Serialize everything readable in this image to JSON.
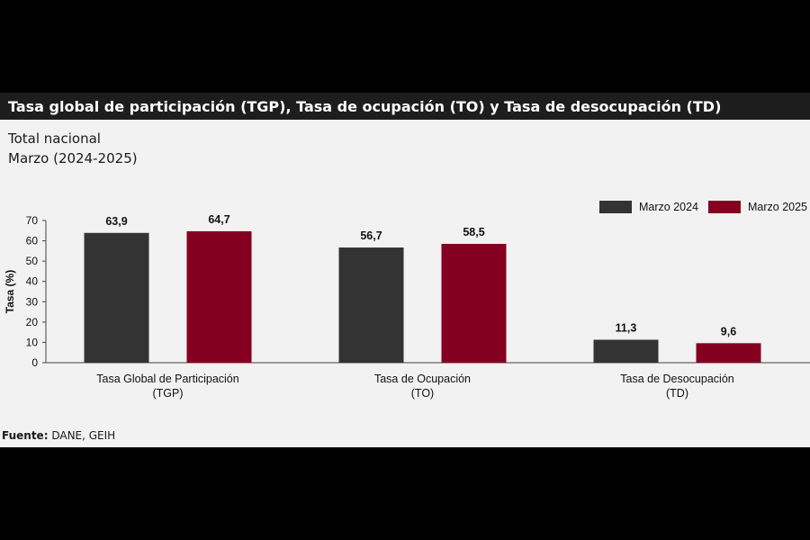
{
  "title": "Tasa global de participación (TGP), Tasa de ocupación (TO) y Tasa de desocupación (TD)",
  "subtitle_lines": [
    "Total nacional",
    "Marzo (2024-2025)"
  ],
  "source": {
    "label": "Fuente:",
    "text": "DANE, GEIH"
  },
  "colors": {
    "series_2024": "#333333",
    "series_2025": "#850020",
    "title_bg": "#1d1d1d",
    "panel_bg": "#f2f2f2"
  },
  "chart_data": {
    "type": "bar",
    "categories": [
      [
        "Tasa Global de Participación",
        "(TGP)"
      ],
      [
        "Tasa de Ocupación",
        "(TO)"
      ],
      [
        "Tasa de Desocupación",
        "(TD)"
      ]
    ],
    "series": [
      {
        "name": "Marzo 2024",
        "values": [
          63.9,
          56.7,
          11.3
        ],
        "labels": [
          "63,9",
          "56,7",
          "11,3"
        ]
      },
      {
        "name": "Marzo 2025",
        "values": [
          64.7,
          58.5,
          9.6
        ],
        "labels": [
          "64,7",
          "58,5",
          "9,6"
        ]
      }
    ],
    "ylabel": "Tasa (%)",
    "ylim": [
      0,
      70
    ],
    "yticks": [
      0,
      10,
      20,
      30,
      40,
      50,
      60,
      70
    ],
    "grid": false,
    "legend_position": "top-right"
  }
}
